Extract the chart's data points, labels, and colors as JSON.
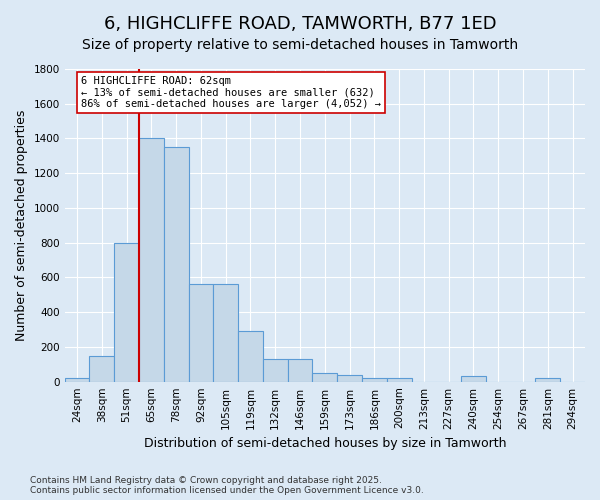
{
  "title1": "6, HIGHCLIFFE ROAD, TAMWORTH, B77 1ED",
  "title2": "Size of property relative to semi-detached houses in Tamworth",
  "xlabel": "Distribution of semi-detached houses by size in Tamworth",
  "ylabel": "Number of semi-detached properties",
  "categories": [
    "24sqm",
    "38sqm",
    "51sqm",
    "65sqm",
    "78sqm",
    "92sqm",
    "105sqm",
    "119sqm",
    "132sqm",
    "146sqm",
    "159sqm",
    "173sqm",
    "186sqm",
    "200sqm",
    "213sqm",
    "227sqm",
    "240sqm",
    "254sqm",
    "267sqm",
    "281sqm",
    "294sqm"
  ],
  "values": [
    20,
    150,
    800,
    1400,
    1350,
    560,
    560,
    290,
    130,
    130,
    50,
    40,
    20,
    20,
    0,
    0,
    30,
    0,
    0,
    20,
    0
  ],
  "bar_color": "#c5d8e8",
  "bar_edge_color": "#5b9bd5",
  "annotation_text": "6 HIGHCLIFFE ROAD: 62sqm\n← 13% of semi-detached houses are smaller (632)\n86% of semi-detached houses are larger (4,052) →",
  "vline_pos": 2.5,
  "vline_color": "#cc0000",
  "annotation_box_color": "#ffffff",
  "annotation_box_edge": "#cc0000",
  "footnote": "Contains HM Land Registry data © Crown copyright and database right 2025.\nContains public sector information licensed under the Open Government Licence v3.0.",
  "ylim": [
    0,
    1800
  ],
  "yticks": [
    0,
    200,
    400,
    600,
    800,
    1000,
    1200,
    1400,
    1600,
    1800
  ],
  "background_color": "#dce9f5",
  "plot_bg_color": "#dce9f5",
  "grid_color": "#ffffff",
  "title1_fontsize": 13,
  "title2_fontsize": 10,
  "xlabel_fontsize": 9,
  "ylabel_fontsize": 9,
  "tick_fontsize": 7.5,
  "annotation_fontsize": 7.5,
  "footnote_fontsize": 6.5
}
